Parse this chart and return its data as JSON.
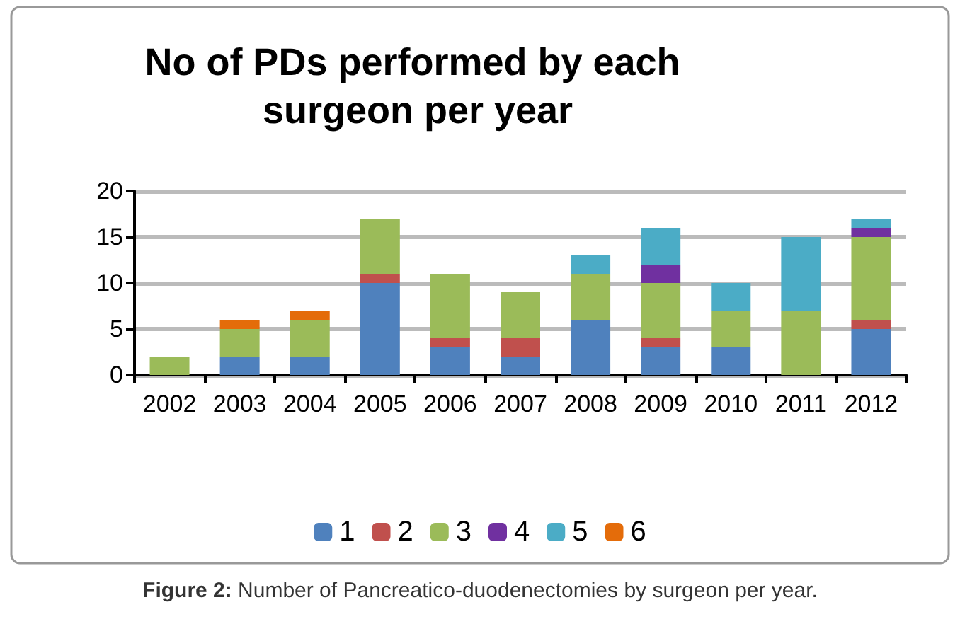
{
  "chart_data": {
    "type": "bar",
    "stacked": true,
    "title": "No of PDs performed by each surgeon per year",
    "categories": [
      "2002",
      "2003",
      "2004",
      "2005",
      "2006",
      "2007",
      "2008",
      "2009",
      "2010",
      "2011",
      "2012"
    ],
    "series": [
      {
        "name": "1",
        "color": "#4f81bd",
        "values": [
          0,
          2,
          2,
          10,
          3,
          2,
          6,
          3,
          3,
          0,
          5
        ]
      },
      {
        "name": "2",
        "color": "#c0504d",
        "values": [
          0,
          0,
          0,
          1,
          1,
          2,
          0,
          1,
          0,
          0,
          1
        ]
      },
      {
        "name": "3",
        "color": "#9bbb59",
        "values": [
          2,
          3,
          4,
          6,
          7,
          5,
          5,
          6,
          4,
          7,
          9
        ]
      },
      {
        "name": "4",
        "color": "#7030a0",
        "values": [
          0,
          0,
          0,
          0,
          0,
          0,
          0,
          2,
          0,
          0,
          1
        ]
      },
      {
        "name": "5",
        "color": "#4bacc6",
        "values": [
          0,
          0,
          0,
          0,
          0,
          0,
          2,
          4,
          3,
          8,
          1
        ]
      },
      {
        "name": "6",
        "color": "#e46c0a",
        "values": [
          0,
          1,
          1,
          0,
          0,
          0,
          0,
          0,
          0,
          0,
          0
        ]
      }
    ],
    "ylim": [
      0,
      20
    ],
    "yticks": [
      0,
      5,
      10,
      15,
      20
    ],
    "grid": "y",
    "legend": "bottom",
    "annotations": [
      "Figure 2: Number of Pancreatico-duodenectomies by surgeon per year."
    ]
  }
}
